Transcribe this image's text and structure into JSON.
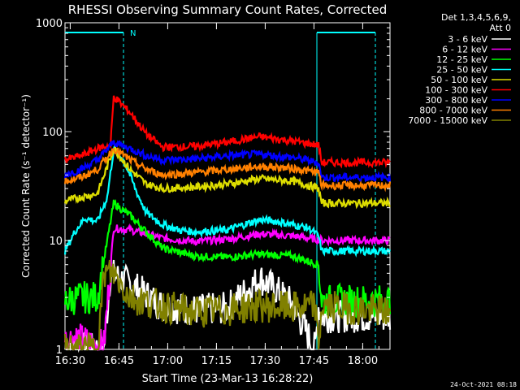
{
  "chart_data": {
    "type": "line",
    "title": "RHESSI Observing Summary Count Rates, Corrected",
    "xlabel": "Start Time (23-Mar-13 16:28:22)",
    "ylabel": "Corrected Count Rate (s⁻¹ detector⁻¹)",
    "ylog": true,
    "ylim": [
      1,
      1000
    ],
    "xlim_minutes": [
      0,
      100
    ],
    "x_ticks": [
      {
        "t": 1.6,
        "label": "16:30"
      },
      {
        "t": 16.6,
        "label": "16:45"
      },
      {
        "t": 31.6,
        "label": "17:00"
      },
      {
        "t": 46.6,
        "label": "17:15"
      },
      {
        "t": 61.6,
        "label": "17:30"
      },
      {
        "t": 76.6,
        "label": "17:45"
      },
      {
        "t": 91.6,
        "label": "18:00"
      }
    ],
    "y_ticks": [
      {
        "v": 1,
        "label": "1"
      },
      {
        "v": 10,
        "label": "10"
      },
      {
        "v": 100,
        "label": "100"
      },
      {
        "v": 1000,
        "label": "1000"
      }
    ],
    "legend_header": [
      "Det 1,3,4,5,6,9,",
      "Att 0"
    ],
    "legend_placement": "right",
    "night_label": "N",
    "series": [
      {
        "name": "3 - 6 keV",
        "color": "#ffffff",
        "x": [
          0,
          5,
          10,
          12,
          14,
          20,
          30,
          40,
          50,
          60,
          65,
          70,
          77,
          78,
          79,
          85,
          95,
          100
        ],
        "y": [
          1,
          1,
          1,
          1,
          5,
          4,
          2.5,
          2.3,
          2.4,
          4.5,
          3.5,
          2.6,
          1,
          2.5,
          2,
          2,
          2,
          2
        ]
      },
      {
        "name": "6 - 12 keV",
        "color": "#ff00ff",
        "x": [
          0,
          3,
          6,
          10,
          12,
          15,
          20,
          30,
          40,
          50,
          60,
          70,
          80
        ],
        "y": [
          1.2,
          1.3,
          1.2,
          1.1,
          1.1,
          13,
          12.5,
          10.5,
          9.8,
          10.3,
          11.5,
          11,
          10
        ]
      },
      {
        "name": "12 - 25 keV",
        "color": "#00ff00",
        "x": [
          0,
          5,
          10,
          15,
          20,
          25,
          30,
          40,
          50,
          60,
          70,
          78,
          79,
          100
        ],
        "y": [
          2.8,
          3,
          3,
          22,
          17,
          12,
          8.5,
          7.2,
          7,
          7.5,
          7.2,
          6,
          2.8,
          2.8
        ]
      },
      {
        "name": "25 - 50 keV",
        "color": "#00ffff",
        "x": [
          0,
          3,
          6,
          10,
          13,
          15,
          18,
          20,
          22,
          25,
          30,
          35,
          40,
          50,
          55,
          60,
          65,
          70,
          75,
          78,
          79,
          85,
          90,
          95,
          100
        ],
        "y": [
          8,
          12,
          16,
          15,
          25,
          70,
          55,
          40,
          28,
          18,
          14,
          12.5,
          12,
          12.5,
          14,
          15.5,
          15,
          14,
          13,
          11,
          8,
          8,
          8,
          8,
          8
        ]
      },
      {
        "name": "50 - 100 keV",
        "color": "#dddd00",
        "x": [
          0,
          5,
          10,
          15,
          20,
          25,
          30,
          40,
          50,
          60,
          70,
          75,
          78,
          79,
          100
        ],
        "y": [
          23,
          25,
          27,
          70,
          45,
          33,
          30,
          31,
          33,
          37,
          35,
          32,
          30,
          22,
          22
        ]
      },
      {
        "name": "100 - 300 keV",
        "color": "#ff0000",
        "x": [
          0,
          5,
          10,
          14,
          15,
          20,
          25,
          30,
          40,
          50,
          60,
          70,
          78,
          79,
          100
        ],
        "y": [
          55,
          60,
          70,
          75,
          210,
          150,
          95,
          72,
          73,
          80,
          90,
          82,
          75,
          52,
          52
        ]
      },
      {
        "name": "300 - 800 keV",
        "color": "#0000ff",
        "x": [
          0,
          5,
          10,
          15,
          20,
          25,
          30,
          40,
          50,
          60,
          70,
          78,
          79,
          100
        ],
        "y": [
          40,
          45,
          55,
          80,
          70,
          60,
          55,
          56,
          60,
          62,
          58,
          52,
          38,
          38
        ]
      },
      {
        "name": "800 - 7000 keV",
        "color": "#ff8000",
        "x": [
          0,
          5,
          10,
          15,
          20,
          25,
          30,
          40,
          50,
          60,
          70,
          78,
          79,
          100
        ],
        "y": [
          35,
          38,
          45,
          70,
          55,
          45,
          40,
          42,
          45,
          48,
          46,
          42,
          32,
          32
        ]
      },
      {
        "name": "7000 - 15000 keV",
        "color": "#808000",
        "x": [
          0,
          5,
          10,
          12,
          15,
          20,
          30,
          40,
          50,
          60,
          70,
          77,
          78,
          79,
          100
        ],
        "y": [
          1,
          1,
          1,
          5,
          5,
          3,
          2.5,
          2.2,
          2.3,
          2.5,
          2.4,
          2.5,
          1,
          2.5,
          2.2
        ]
      }
    ]
  },
  "footer": {
    "timestamp": "24-Oct-2021 08:18"
  }
}
